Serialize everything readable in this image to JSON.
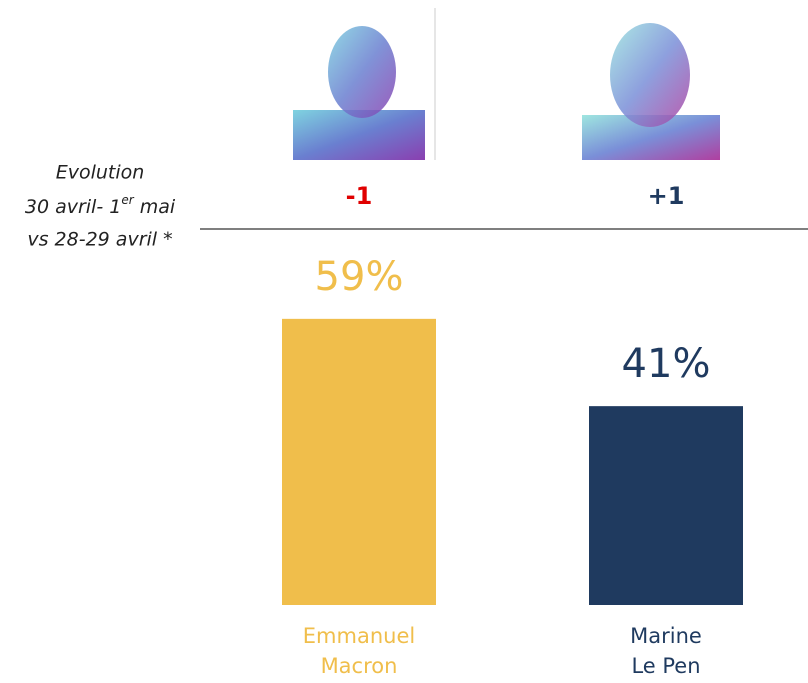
{
  "chart_data": {
    "type": "bar",
    "categories": [
      "Emmanuel Macron",
      "Marine Le Pen"
    ],
    "values": [
      59,
      41
    ],
    "value_labels": [
      "59%",
      "41%"
    ],
    "colors": [
      "#f0be4b",
      "#1f3a5f"
    ],
    "evolution_title": {
      "line1": "Evolution",
      "line2": [
        "30 avril- 1",
        "er",
        " mai"
      ],
      "line3": "vs 28-29 avril *"
    },
    "evolution": {
      "labels": [
        "-1",
        "+1"
      ],
      "colors": [
        "#e00000",
        "#1f3a5f"
      ]
    }
  }
}
